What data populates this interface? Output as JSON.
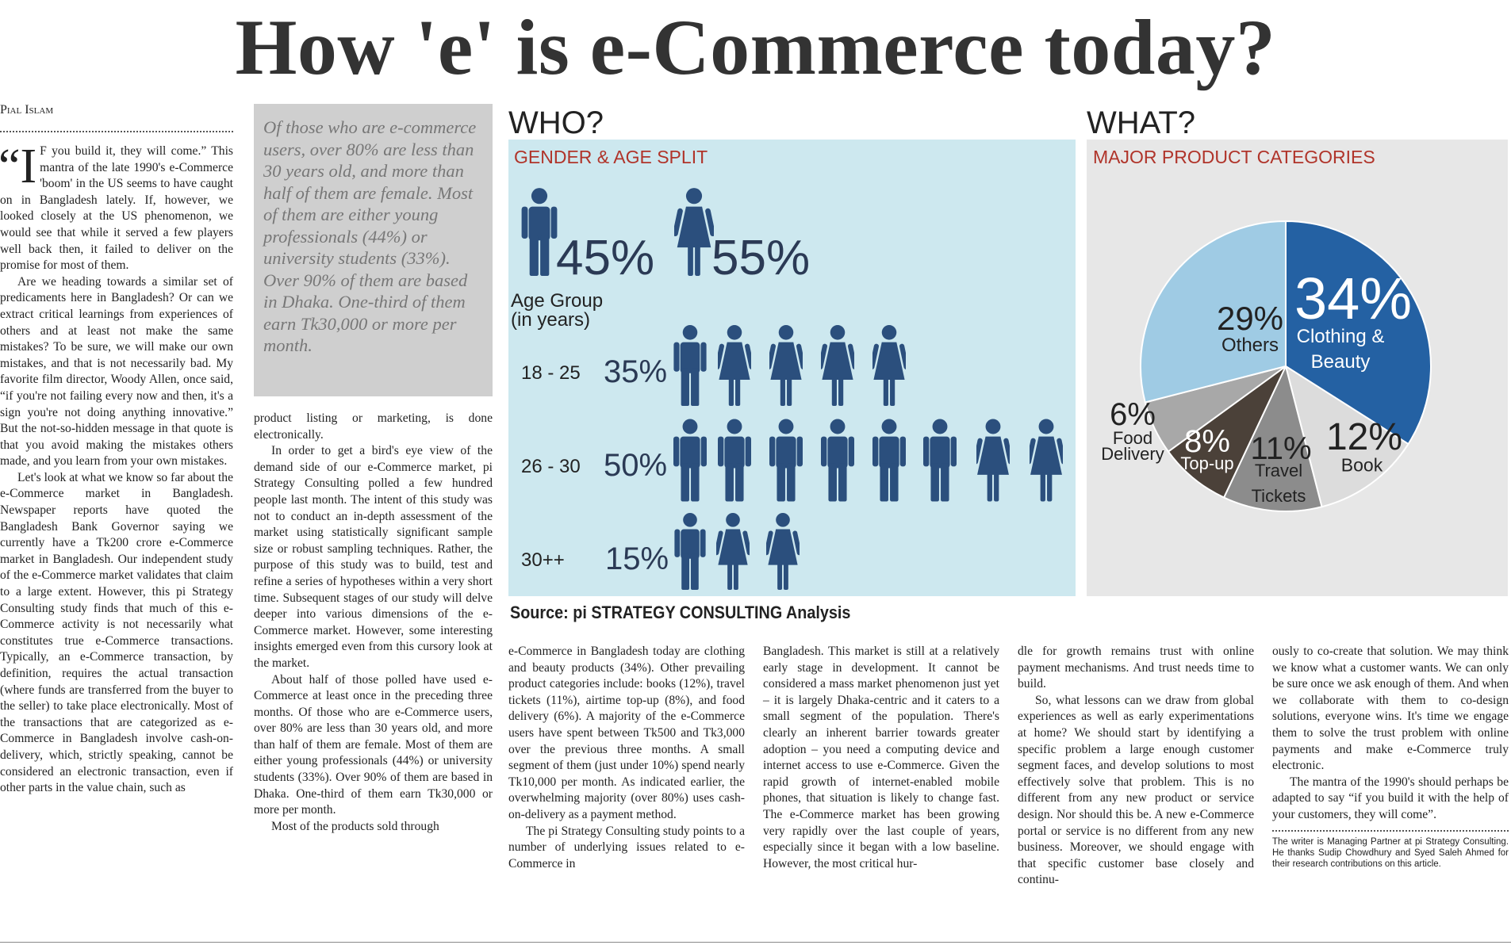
{
  "headline": "How 'e' is e-Commerce today?",
  "byline": "Pial Islam",
  "pull_quote": "Of those who are e-commerce users, over 80% are less than 30 years old, and more than half of them are female. Most of them are either young professionals (44%) or university students (33%). Over 90% of them are based in Dhaka. One-third of them earn Tk30,000 or more per month.",
  "columns": [
    {
      "drop_cap": "“I",
      "paragraphs": [
        "F you build it, they will come.” This mantra of the late 1990's e-Commerce 'boom' in the US seems to have caught on in Bangladesh lately. If, however, we looked closely at the US phenomenon, we would see that while it served a few players well back then, it failed to deliver on the promise for most of them.",
        "Are we heading towards a similar set of predicaments here in Bangladesh? Or can we extract critical learnings from experiences of others and at least not make the same mistakes? To be sure, we will make our own mistakes, and that is not necessarily bad. My favorite film director, Woody Allen, once said, “if you're not failing every now and then, it's a sign you're not doing anything innovative.” But the not-so-hidden message in that quote is that you avoid making the mistakes others made, and you learn from your own mistakes.",
        "Let's look at what we know so far about the e-Commerce market in Bangladesh. Newspaper reports have quoted the Bangladesh Bank Governor saying we currently have a Tk200 crore e-Commerce market in Bangladesh. Our independent study of the e-Commerce market validates that claim to a large extent. However, this pi Strategy Consulting study finds that much of this e-Commerce activity is not necessarily what constitutes true e-Commerce transactions. Typically, an e-Commerce transaction, by definition, requires the actual transaction (where funds are transferred from the buyer to the seller) to take place electronically. Most of the transactions that are categorized as e-Commerce in Bangladesh involve cash-on-delivery, which, strictly speaking, cannot be considered an electronic transaction, even if other parts in the value chain, such as"
      ]
    },
    {
      "paragraphs": [
        "product listing or marketing, is done electronically.",
        "In order to get a bird's eye view of the demand side of our e-Commerce market, pi Strategy Consulting polled a few hundred people last month. The intent of this study was not to conduct an in-depth assessment of the market using statistically significant sample size or robust sampling techniques. Rather, the purpose of this study was to build, test and refine a series of hypotheses within a very short time. Subsequent stages of our study will delve deeper into various dimensions of the e-Commerce market. However, some interesting insights emerged even from this cursory look at the market.",
        "About half of those polled have used e-Commerce at least once in the preceding three months. Of those who are e-Commerce users, over 80% are less than 30 years old, and more than half of them are female. Most of them are either young professionals (44%) or university students (33%). Over 90% of them are based in Dhaka. One-third of them earn Tk30,000 or more per month.",
        "Most of the products sold through"
      ]
    },
    {
      "paragraphs": [
        "e-Commerce in Bangladesh today are clothing and beauty products (34%). Other prevailing product categories include: books (12%), travel tickets (11%), airtime top-up (8%), and food delivery (6%). A majority of the e-Commerce users have spent between Tk500 and Tk3,000 over the previous three months. A small segment of them (just under 10%) spend nearly Tk10,000 per month. As indicated earlier, the overwhelming majority (over 80%) uses cash-on-delivery as a payment method.",
        "The pi Strategy Consulting study points to a number of underlying issues related to e-Commerce in"
      ]
    },
    {
      "paragraphs": [
        "Bangladesh. This market is still at a relatively early stage in development. It cannot be considered a mass market phenomenon just yet – it is largely Dhaka-centric and it caters to a small segment of the population. There's clearly an inherent barrier towards greater adoption – you need a computing device and internet access to use e-Commerce. Given the rapid growth of internet-enabled mobile phones, that situation is likely to change fast. The e-Commerce market has been growing very rapidly over the last couple of years, especially since it began with a low baseline. However, the most critical hur-"
      ]
    },
    {
      "paragraphs": [
        "dle for growth remains trust with online payment mechanisms. And trust needs time to build.",
        "So, what lessons can we draw from global experiences as well as early experimentations at home? We should start by identifying a specific problem a large enough customer segment faces, and develop solutions to most effectively solve that problem. This is no different from any new product or service design. Nor should this be. A new e-Commerce portal or service is no different from any new business. Moreover, we should engage with that specific customer base closely and continu-"
      ]
    },
    {
      "paragraphs": [
        "ously to co-create that solution. We may think we know what a customer wants. We can only be sure once we ask enough of them. And when we collaborate with them to co-design solutions, everyone wins. It's time we engage them to solve the trust problem with online payments and make e-Commerce truly electronic.",
        "The mantra of the 1990's should perhaps be adapted to say “if you build it with the help of your customers, they will come”."
      ]
    }
  ],
  "footnote": "The writer is Managing Partner at pi Strategy Consulting. He thanks Sudip Chowdhury and Syed Saleh Ahmed for their research contributions on this article.",
  "infographic": {
    "who": {
      "heading": "WHO?",
      "subtitle": "GENDER & AGE SPLIT",
      "male": "45%",
      "female": "55%",
      "age_group_label": "Age Group (in years)",
      "age_rows": [
        {
          "range": "18 - 25",
          "share": "35%"
        },
        {
          "range": "26 - 30",
          "share": "50%"
        },
        {
          "range": "30++",
          "share": "15%"
        }
      ]
    },
    "what": {
      "heading": "WHAT?",
      "subtitle": "MAJOR PRODUCT CATEGORIES",
      "pie": {
        "type": "pie",
        "categories": [
          "Clothing & Beauty",
          "Book",
          "Travel Tickets",
          "Top-up",
          "Food Delivery",
          "Others"
        ],
        "values": [
          34,
          12,
          11,
          8,
          6,
          29
        ],
        "value_labels": [
          "34%",
          "12%",
          "11%",
          "8%",
          "6%",
          "29%"
        ],
        "colors": [
          "#2461a3",
          "#dcdcdc",
          "#8c8c8c",
          "#4b4139",
          "#a8a8a8",
          "#9fcbe4"
        ]
      }
    },
    "source": "Source: pi STRATEGY CONSULTING Analysis"
  }
}
